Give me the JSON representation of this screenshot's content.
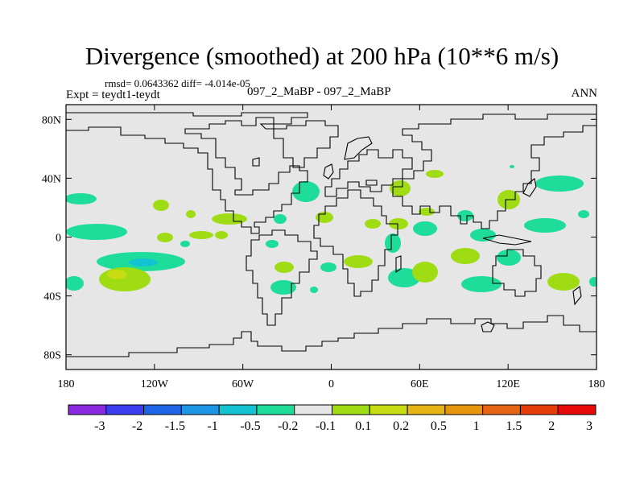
{
  "title": "Divergence (smoothed) at 200 hPa (10**6 m/s)",
  "stats": "rmsd= 0.0643362 diff= -4.014e-05",
  "expt": "Expt = teydt1-teydt",
  "diff_label": "097_2_MaBP - 097_2_MaBP",
  "season": "ANN",
  "map": {
    "background_color": "#e6e6e6",
    "y_ticks": [
      {
        "lat": 80,
        "label": "80N"
      },
      {
        "lat": 40,
        "label": "40N"
      },
      {
        "lat": 0,
        "label": "0"
      },
      {
        "lat": -40,
        "label": "40S"
      },
      {
        "lat": -80,
        "label": "80S"
      }
    ],
    "x_ticks": [
      {
        "lon": -180,
        "label": "180"
      },
      {
        "lon": -120,
        "label": "120W"
      },
      {
        "lon": -60,
        "label": "60W"
      },
      {
        "lon": 0,
        "label": "0"
      },
      {
        "lon": 60,
        "label": "60E"
      },
      {
        "lon": 120,
        "label": "120E"
      },
      {
        "lon": 180,
        "label": "180"
      }
    ]
  },
  "colorbar": {
    "colors": [
      "#8a2be2",
      "#3c3cf0",
      "#1e64e6",
      "#1e96e6",
      "#14c3d2",
      "#1edc9a",
      "#e6e6e6",
      "#a0dc14",
      "#c8dc14",
      "#e6b414",
      "#e6960a",
      "#e66414",
      "#e63c0a",
      "#e60a0a"
    ],
    "labels": [
      "-3",
      "-2",
      "-1.5",
      "-1",
      "-0.5",
      "-0.2",
      "-0.1",
      "0.1",
      "0.2",
      "0.5",
      "1",
      "1.5",
      "2",
      "3"
    ]
  }
}
